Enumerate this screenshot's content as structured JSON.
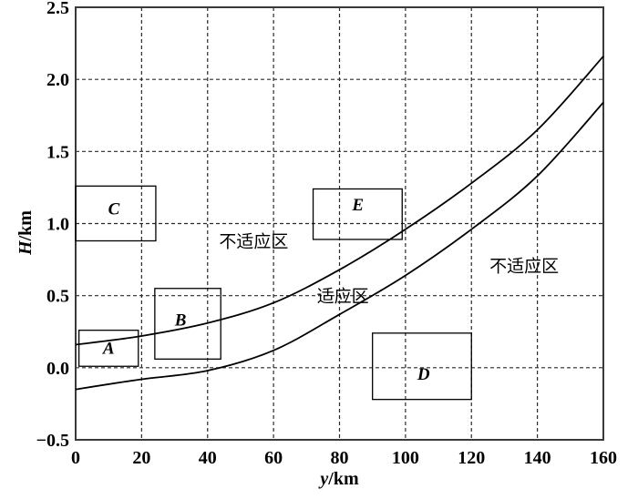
{
  "figure": {
    "background": "#ffffff",
    "line_color": "#000000",
    "grid_color": "#2b2b2b",
    "frame_color": "#3a3a3a"
  },
  "chart_data": {
    "type": "line",
    "title": "",
    "xlabel": "y/km",
    "ylabel": "H/km",
    "xlim": [
      0,
      160
    ],
    "ylim": [
      -0.5,
      2.5
    ],
    "xticks": [
      0,
      20,
      40,
      60,
      80,
      100,
      120,
      140,
      160
    ],
    "xtick_labels": [
      "0",
      "20",
      "40",
      "60",
      "80",
      "100",
      "120",
      "140",
      "160"
    ],
    "yticks": [
      2.5,
      2.0,
      1.5,
      1.0,
      0.5,
      0.0,
      -0.5
    ],
    "ytick_labels": [
      "2.5",
      "2.0",
      "1.5",
      "1.0",
      "0.5",
      "0.0",
      "−0.5"
    ],
    "grid": {
      "on": true,
      "style": "dashed"
    },
    "legend": "none",
    "series": [
      {
        "name": "upper-boundary-curve",
        "x": [
          0,
          20,
          40,
          60,
          80,
          100,
          120,
          140,
          160
        ],
        "y": [
          0.16,
          0.22,
          0.31,
          0.45,
          0.68,
          0.96,
          1.28,
          1.65,
          2.16
        ]
      },
      {
        "name": "lower-boundary-curve",
        "x": [
          0,
          20,
          40,
          60,
          80,
          100,
          120,
          140,
          160
        ],
        "y": [
          -0.15,
          -0.08,
          -0.02,
          0.12,
          0.37,
          0.64,
          0.96,
          1.33,
          1.84
        ]
      }
    ],
    "regions": [
      {
        "label": "A",
        "x_range": [
          1,
          19
        ],
        "h_range": [
          0.01,
          0.26
        ],
        "label_x": 10,
        "label_h": 0.135
      },
      {
        "label": "B",
        "x_range": [
          24,
          44
        ],
        "h_range": [
          0.06,
          0.55
        ],
        "label_x": 31.8,
        "label_h": 0.33
      },
      {
        "label": "C",
        "x_range": [
          0,
          24.3
        ],
        "h_range": [
          0.88,
          1.26
        ],
        "label_x": 11.6,
        "label_h": 1.1
      },
      {
        "label": "D",
        "x_range": [
          90,
          120
        ],
        "h_range": [
          -0.22,
          0.24
        ],
        "label_x": 105.5,
        "label_h": -0.045
      },
      {
        "label": "E",
        "x_range": [
          72,
          99
        ],
        "h_range": [
          0.89,
          1.24
        ],
        "label_x": 85.6,
        "label_h": 1.13
      }
    ],
    "annotations": [
      {
        "name": "non-adaptation-zone-left",
        "text": "不适应区",
        "x": 54,
        "h": 0.88
      },
      {
        "name": "adaptation-zone",
        "text": "适应区",
        "x": 81,
        "h": 0.5
      },
      {
        "name": "non-adaptation-zone-right",
        "text": "不适应区",
        "x": 136,
        "h": 0.71
      }
    ]
  }
}
